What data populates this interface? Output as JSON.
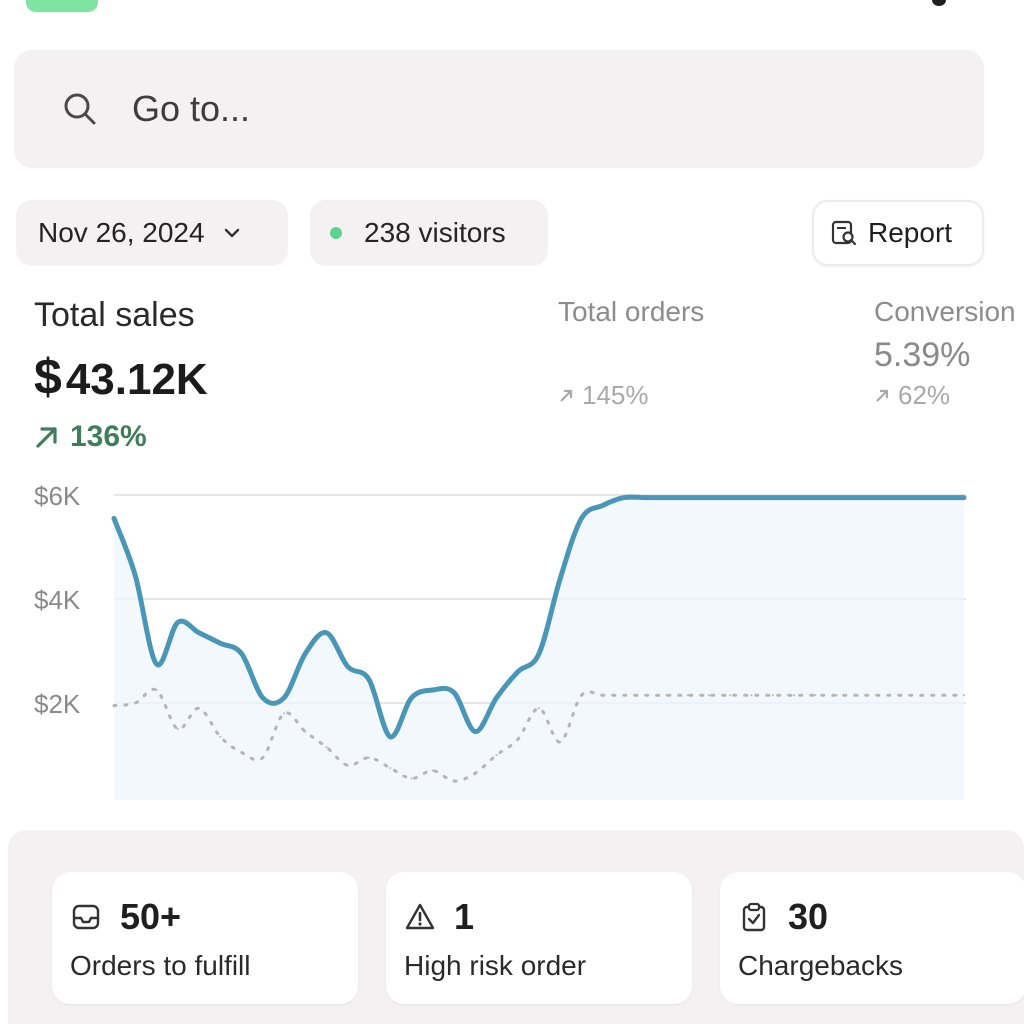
{
  "search": {
    "placeholder": "Go to..."
  },
  "filters": {
    "date": "Nov 26, 2024",
    "visitors": "238 visitors",
    "report_label": "Report"
  },
  "metrics": {
    "total_sales": {
      "label": "Total sales",
      "currency": "$",
      "value": "43.12K",
      "change": "136%"
    },
    "total_orders": {
      "label": "Total orders",
      "change": "145%"
    },
    "conversion": {
      "label": "Conversion",
      "value": "5.39%",
      "change": "62%"
    }
  },
  "colors": {
    "accent_line": "#4a96b6",
    "compare_line": "#b5b5b5",
    "positive": "#3f7d5b",
    "visitors_dot": "#5fd38d"
  },
  "chart_data": {
    "type": "line",
    "title": "",
    "xlabel": "",
    "ylabel": "",
    "y_tick_labels": [
      "$6K",
      "$4K",
      "$2K"
    ],
    "y_ticks": [
      6000,
      4000,
      2000
    ],
    "ylim": [
      0,
      6000
    ],
    "grid": true,
    "x": [
      0,
      1,
      2,
      3,
      4,
      5,
      6,
      7,
      8,
      9,
      10,
      11,
      12,
      13,
      14,
      15,
      16,
      17,
      18,
      19,
      20,
      21,
      22,
      23,
      24,
      25,
      26,
      27,
      28,
      29,
      30,
      31,
      32,
      33,
      34,
      35,
      36,
      37,
      38,
      39,
      40
    ],
    "series": [
      {
        "style": "solid",
        "values": [
          5550,
          4450,
          2750,
          3550,
          3350,
          3150,
          2950,
          2100,
          2100,
          2950,
          3350,
          2700,
          2450,
          1350,
          2100,
          2250,
          2200,
          1450,
          2100,
          2600,
          2950,
          4400,
          5550,
          5800,
          5950,
          5950,
          5950,
          5950,
          5950,
          5950,
          5950,
          5950,
          5950,
          5950,
          5950,
          5950,
          5950,
          5950,
          5950,
          5950,
          5950
        ]
      },
      {
        "style": "dotted",
        "values": [
          1950,
          2000,
          2250,
          1500,
          1900,
          1350,
          1050,
          950,
          1800,
          1450,
          1150,
          800,
          950,
          750,
          550,
          700,
          500,
          650,
          1000,
          1300,
          1900,
          1250,
          2150,
          2150,
          2150,
          2150,
          2150,
          2150,
          2150,
          2150,
          2150,
          2150,
          2150,
          2150,
          2150,
          2150,
          2150,
          2150,
          2150,
          2150,
          2150
        ]
      }
    ]
  },
  "cards": [
    {
      "icon": "inbox-icon",
      "value": "50+",
      "label": "Orders to fulfill"
    },
    {
      "icon": "warning-icon",
      "value": "1",
      "label": "High risk order"
    },
    {
      "icon": "clipboard-check-icon",
      "value": "30",
      "label": "Chargebacks"
    }
  ]
}
